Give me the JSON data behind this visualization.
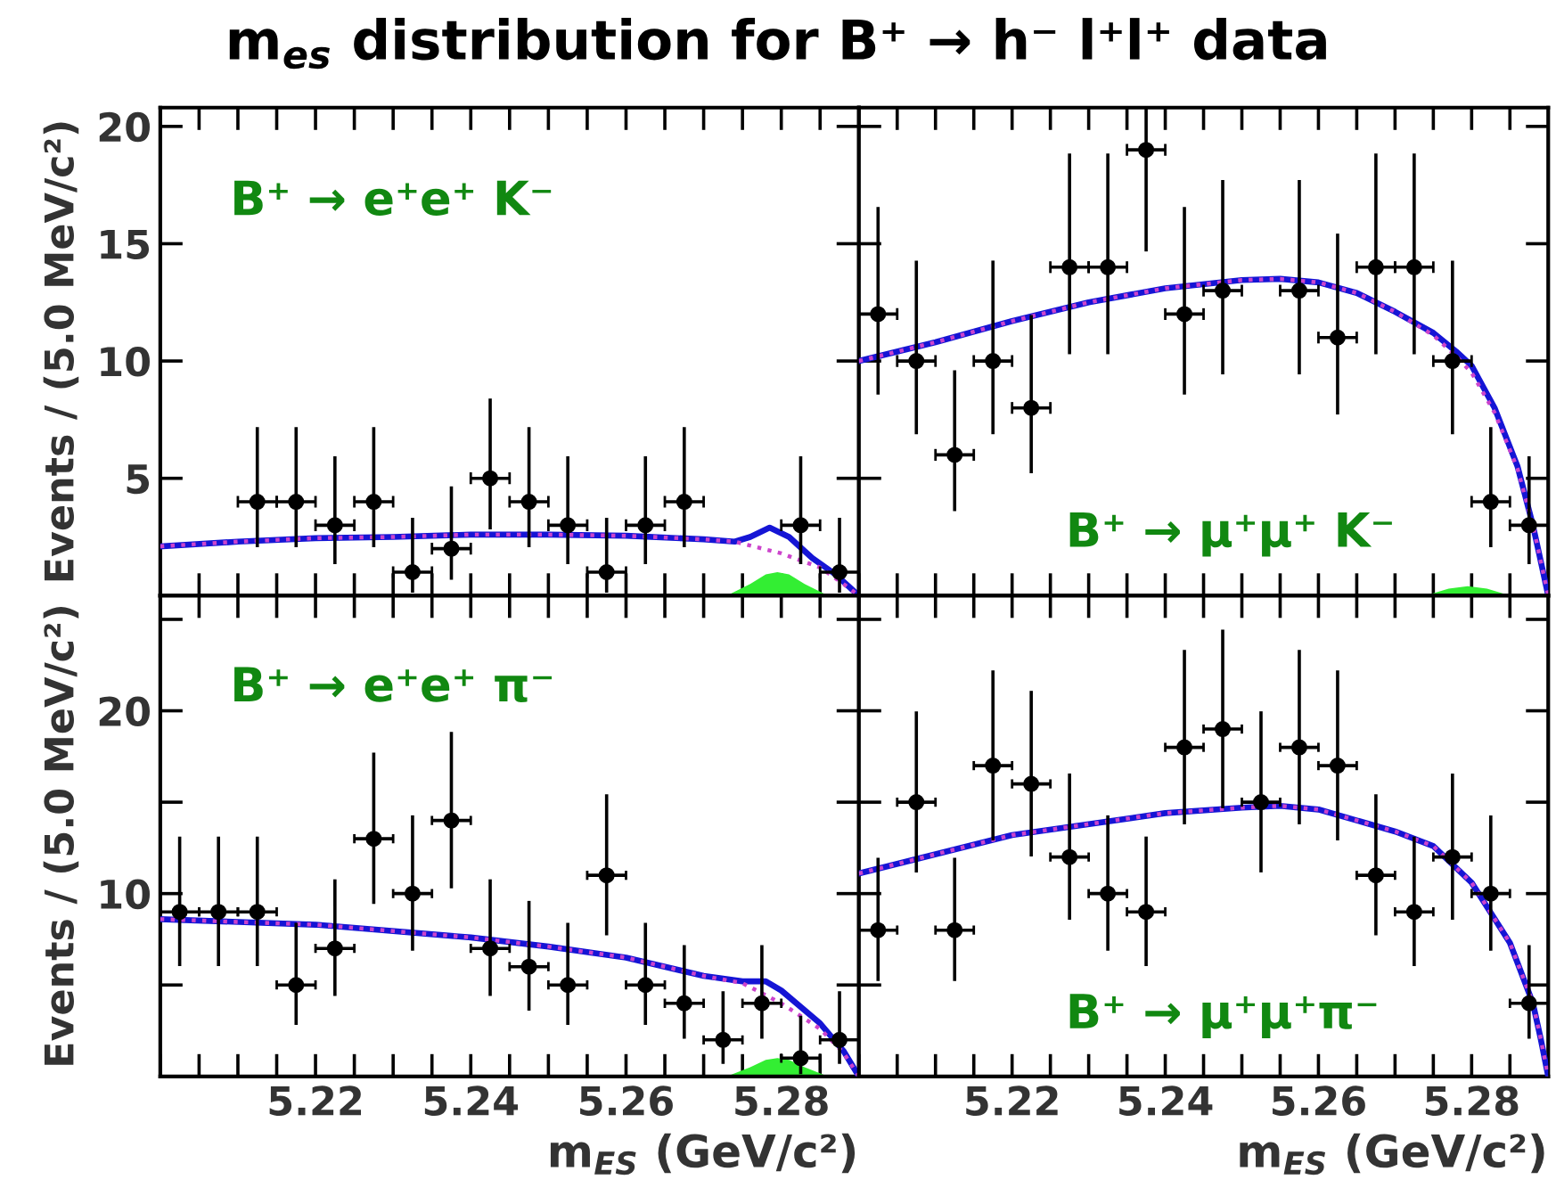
{
  "chart_data": [
    {
      "type": "scatter",
      "title": "m$_{es}$ distribution for B⁺ → h⁻ l⁺l⁺ data",
      "ylabel": "Events / (5.0 MeV/c²)",
      "annotations": [
        "B⁺ → e⁺e⁺ K⁻"
      ],
      "xlim": [
        5.2,
        5.29
      ],
      "ylim": [
        0,
        20.8
      ],
      "tick_labels": "y",
      "legend": false,
      "grid": false,
      "xticks": [
        {
          "value": 5.2,
          "label": null
        },
        {
          "value": 5.205,
          "label": null
        },
        {
          "value": 5.21,
          "label": null
        },
        {
          "value": 5.215,
          "label": null
        },
        {
          "value": 5.22,
          "label": null
        },
        {
          "value": 5.225,
          "label": null
        },
        {
          "value": 5.23,
          "label": null
        },
        {
          "value": 5.235,
          "label": null
        },
        {
          "value": 5.24,
          "label": null
        },
        {
          "value": 5.245,
          "label": null
        },
        {
          "value": 5.25,
          "label": null
        },
        {
          "value": 5.255,
          "label": null
        },
        {
          "value": 5.26,
          "label": null
        },
        {
          "value": 5.265,
          "label": null
        },
        {
          "value": 5.27,
          "label": null
        },
        {
          "value": 5.275,
          "label": null
        },
        {
          "value": 5.28,
          "label": null
        },
        {
          "value": 5.285,
          "label": null
        }
      ],
      "yticks": [
        5,
        10,
        15,
        20
      ],
      "series": [
        {
          "type": "area",
          "color": "#33ee33",
          "x": [
            5.273,
            5.276,
            5.278,
            5.2795,
            5.281,
            5.283,
            5.286
          ],
          "values": [
            0,
            0.5,
            0.9,
            1.0,
            0.9,
            0.5,
            0
          ]
        },
        {
          "type": "line",
          "color": "#cc44cc",
          "line_style": "dotted",
          "x": [
            5.2,
            5.21,
            5.22,
            5.23,
            5.24,
            5.25,
            5.26,
            5.27,
            5.274,
            5.28,
            5.285,
            5.288,
            5.29
          ],
          "values": [
            2.1,
            2.3,
            2.45,
            2.5,
            2.6,
            2.6,
            2.55,
            2.4,
            2.3,
            1.8,
            1.2,
            0.5,
            0
          ]
        },
        {
          "type": "line",
          "color": "#1515d5",
          "line_style": "solid",
          "x": [
            5.2,
            5.21,
            5.22,
            5.23,
            5.24,
            5.25,
            5.26,
            5.27,
            5.274,
            5.276,
            5.2785,
            5.281,
            5.284,
            5.287,
            5.289,
            5.29
          ],
          "values": [
            2.1,
            2.3,
            2.45,
            2.5,
            2.6,
            2.6,
            2.55,
            2.4,
            2.3,
            2.5,
            2.9,
            2.5,
            1.6,
            0.9,
            0.3,
            0
          ]
        },
        {
          "color": "#000000",
          "marker": "circle",
          "x": [
            5.2125,
            5.2175,
            5.2225,
            5.2275,
            5.2325,
            5.2375,
            5.2425,
            5.2475,
            5.2525,
            5.2575,
            5.2625,
            5.2675,
            5.2825,
            5.2875
          ],
          "values": [
            4,
            4,
            3,
            4,
            1,
            2,
            5,
            4,
            3,
            1,
            3,
            4,
            3,
            1
          ],
          "errors": [
            [
              2.06,
              7.18
            ],
            [
              2.06,
              7.18
            ],
            [
              1.34,
              5.94
            ],
            [
              2.06,
              7.18
            ],
            [
              0.13,
              3.32
            ],
            [
              0.68,
              4.66
            ],
            [
              2.82,
              8.4
            ],
            [
              2.06,
              7.18
            ],
            [
              1.34,
              5.94
            ],
            [
              0.13,
              3.32
            ],
            [
              1.34,
              5.94
            ],
            [
              2.06,
              7.18
            ],
            [
              1.34,
              5.94
            ],
            [
              0.13,
              3.32
            ]
          ],
          "xerrors": [
            0.0025,
            0.0025,
            0.0025,
            0.0025,
            0.0025,
            0.0025,
            0.0025,
            0.0025,
            0.0025,
            0.0025,
            0.0025,
            0.0025,
            0.0025,
            0.0025
          ]
        }
      ]
    },
    {
      "type": "scatter",
      "annotations": [
        "B⁺ → μ⁺μ⁺ K⁻"
      ],
      "xlim": [
        5.2,
        5.29
      ],
      "ylim": [
        0,
        20.8
      ],
      "tick_labels": false,
      "legend": false,
      "grid": false,
      "xticks": [
        {
          "value": 5.2,
          "label": null
        },
        {
          "value": 5.205,
          "label": null
        },
        {
          "value": 5.21,
          "label": null
        },
        {
          "value": 5.215,
          "label": null
        },
        {
          "value": 5.22,
          "label": null
        },
        {
          "value": 5.225,
          "label": null
        },
        {
          "value": 5.23,
          "label": null
        },
        {
          "value": 5.235,
          "label": null
        },
        {
          "value": 5.24,
          "label": null
        },
        {
          "value": 5.245,
          "label": null
        },
        {
          "value": 5.25,
          "label": null
        },
        {
          "value": 5.255,
          "label": null
        },
        {
          "value": 5.26,
          "label": null
        },
        {
          "value": 5.265,
          "label": null
        },
        {
          "value": 5.27,
          "label": null
        },
        {
          "value": 5.275,
          "label": null
        },
        {
          "value": 5.28,
          "label": null
        },
        {
          "value": 5.285,
          "label": null
        }
      ],
      "yticks": [
        {
          "value": 5,
          "label": null
        },
        {
          "value": 10,
          "label": null
        },
        {
          "value": 15,
          "label": null
        },
        {
          "value": 20,
          "label": null
        }
      ],
      "series": [
        {
          "type": "area",
          "color": "#33ee33",
          "x": [
            5.274,
            5.277,
            5.2795,
            5.282,
            5.285
          ],
          "values": [
            0,
            0.3,
            0.4,
            0.3,
            0
          ]
        },
        {
          "type": "line",
          "color": "#cc44cc",
          "line_style": "dotted",
          "x": [
            5.2,
            5.21,
            5.22,
            5.23,
            5.24,
            5.25,
            5.255,
            5.26,
            5.265,
            5.27,
            5.275,
            5.278,
            5.28,
            5.283,
            5.286,
            5.288,
            5.289,
            5.29
          ],
          "values": [
            10,
            10.8,
            11.7,
            12.5,
            13.1,
            13.45,
            13.5,
            13.35,
            12.9,
            12.1,
            11.1,
            10.2,
            9.5,
            7.8,
            5.4,
            3,
            1.5,
            0
          ]
        },
        {
          "type": "line",
          "color": "#1515d5",
          "line_style": "solid",
          "x": [
            5.2,
            5.21,
            5.22,
            5.23,
            5.24,
            5.25,
            5.255,
            5.26,
            5.265,
            5.27,
            5.275,
            5.278,
            5.28,
            5.283,
            5.286,
            5.288,
            5.289,
            5.29
          ],
          "values": [
            10,
            10.8,
            11.7,
            12.5,
            13.1,
            13.45,
            13.5,
            13.35,
            12.9,
            12.1,
            11.2,
            10.4,
            9.8,
            8,
            5.5,
            3,
            1.5,
            0
          ]
        },
        {
          "color": "#000000",
          "marker": "circle",
          "x": [
            5.2025,
            5.2075,
            5.2125,
            5.2175,
            5.2225,
            5.2275,
            5.2325,
            5.2375,
            5.2425,
            5.2475,
            5.2575,
            5.2625,
            5.2675,
            5.2725,
            5.2775,
            5.2825,
            5.2875
          ],
          "values": [
            12,
            10,
            6,
            10,
            8,
            14,
            14,
            19,
            12,
            13,
            13,
            11,
            14,
            14,
            10,
            4,
            3
          ],
          "errors": [
            [
              8.57,
              16.57
            ],
            [
              6.88,
              14.28
            ],
            [
              3.6,
              9.6
            ],
            [
              6.88,
              14.28
            ],
            [
              5.22,
              11.96
            ],
            [
              10.29,
              18.84
            ],
            [
              10.29,
              18.84
            ],
            [
              14.67,
              20.8
            ],
            [
              8.57,
              16.57
            ],
            [
              9.43,
              17.71
            ],
            [
              9.43,
              17.71
            ],
            [
              7.72,
              15.43
            ],
            [
              10.29,
              18.84
            ],
            [
              10.29,
              18.84
            ],
            [
              6.88,
              14.28
            ],
            [
              2.06,
              7.18
            ],
            [
              1.34,
              5.94
            ]
          ],
          "xerrors": [
            0.0025,
            0.0025,
            0.0025,
            0.0025,
            0.0025,
            0.0025,
            0.0025,
            0.0025,
            0.0025,
            0.0025,
            0.0025,
            0.0025,
            0.0025,
            0.0025,
            0.0025,
            0.0025,
            0.0025
          ]
        }
      ]
    },
    {
      "type": "scatter",
      "ylabel": "Events / (5.0 MeV/c²)",
      "xlabel": "m$_{ES}$ (GeV/c²)",
      "annotations": [
        "B⁺ → e⁺e⁺ π⁻"
      ],
      "xlim": [
        5.2,
        5.29
      ],
      "ylim": [
        0,
        26.3
      ],
      "legend": false,
      "grid": false,
      "xticks": [
        {
          "value": 5.2,
          "label": null
        },
        {
          "value": 5.205,
          "label": null
        },
        {
          "value": 5.21,
          "label": null
        },
        {
          "value": 5.215,
          "label": null
        },
        {
          "value": 5.22,
          "label": "5.22"
        },
        {
          "value": 5.225,
          "label": null
        },
        {
          "value": 5.23,
          "label": null
        },
        {
          "value": 5.235,
          "label": null
        },
        {
          "value": 5.24,
          "label": "5.24"
        },
        {
          "value": 5.245,
          "label": null
        },
        {
          "value": 5.25,
          "label": null
        },
        {
          "value": 5.255,
          "label": null
        },
        {
          "value": 5.26,
          "label": "5.26"
        },
        {
          "value": 5.265,
          "label": null
        },
        {
          "value": 5.27,
          "label": null
        },
        {
          "value": 5.275,
          "label": null
        },
        {
          "value": 5.28,
          "label": "5.28"
        },
        {
          "value": 5.285,
          "label": null
        }
      ],
      "yticks": [
        {
          "value": 5,
          "label": null
        },
        10,
        {
          "value": 15,
          "label": null
        },
        20,
        {
          "value": 25,
          "label": null
        }
      ],
      "series": [
        {
          "type": "area",
          "color": "#33ee33",
          "x": [
            5.273,
            5.276,
            5.278,
            5.2795,
            5.281,
            5.283,
            5.286
          ],
          "values": [
            0,
            0.5,
            0.9,
            1.0,
            0.9,
            0.5,
            0
          ]
        },
        {
          "type": "line",
          "color": "#cc44cc",
          "line_style": "dotted",
          "x": [
            5.2,
            5.22,
            5.24,
            5.25,
            5.26,
            5.27,
            5.275,
            5.28,
            5.285,
            5.288,
            5.29
          ],
          "values": [
            8.6,
            8.3,
            7.6,
            7.1,
            6.5,
            5.5,
            5.1,
            4.0,
            2.6,
            1.3,
            0
          ]
        },
        {
          "type": "line",
          "color": "#1515d5",
          "line_style": "solid",
          "x": [
            5.2,
            5.22,
            5.24,
            5.25,
            5.26,
            5.27,
            5.275,
            5.278,
            5.28,
            5.285,
            5.288,
            5.29
          ],
          "values": [
            8.6,
            8.3,
            7.6,
            7.1,
            6.5,
            5.5,
            5.2,
            5.2,
            4.7,
            2.9,
            1.4,
            0
          ]
        },
        {
          "color": "#000000",
          "marker": "circle",
          "x": [
            5.2025,
            5.2075,
            5.2125,
            5.2175,
            5.2225,
            5.2275,
            5.2325,
            5.2375,
            5.2425,
            5.2475,
            5.2525,
            5.2575,
            5.2625,
            5.2675,
            5.2725,
            5.2775,
            5.2825,
            5.2875
          ],
          "values": [
            9,
            9,
            9,
            5,
            7,
            13,
            10,
            14,
            7,
            6,
            5,
            11,
            5,
            4,
            2,
            4,
            1,
            2
          ],
          "errors": [
            [
              6.04,
              13.12
            ],
            [
              6.04,
              13.12
            ],
            [
              6.04,
              13.12
            ],
            [
              2.82,
              8.4
            ],
            [
              4.4,
              10.78
            ],
            [
              9.43,
              17.71
            ],
            [
              6.88,
              14.28
            ],
            [
              10.29,
              18.84
            ],
            [
              4.4,
              10.78
            ],
            [
              3.6,
              9.6
            ],
            [
              2.82,
              8.4
            ],
            [
              7.72,
              15.43
            ],
            [
              2.82,
              8.4
            ],
            [
              2.06,
              7.18
            ],
            [
              0.68,
              4.66
            ],
            [
              2.06,
              7.18
            ],
            [
              0.13,
              3.32
            ],
            [
              0.68,
              4.66
            ]
          ],
          "xerrors": [
            0.0025,
            0.0025,
            0.0025,
            0.0025,
            0.0025,
            0.0025,
            0.0025,
            0.0025,
            0.0025,
            0.0025,
            0.0025,
            0.0025,
            0.0025,
            0.0025,
            0.0025,
            0.0025,
            0.0025,
            0.0025
          ]
        }
      ]
    },
    {
      "type": "scatter",
      "xlabel": "m$_{ES}$ (GeV/c²)",
      "annotations": [
        "B⁺ → μ⁺μ⁺π⁻"
      ],
      "xlim": [
        5.2,
        5.29
      ],
      "ylim": [
        0,
        26.3
      ],
      "tick_labels": "x",
      "legend": false,
      "grid": false,
      "xticks": [
        {
          "value": 5.2,
          "label": null
        },
        {
          "value": 5.205,
          "label": null
        },
        {
          "value": 5.21,
          "label": null
        },
        {
          "value": 5.215,
          "label": null
        },
        {
          "value": 5.22,
          "label": "5.22"
        },
        {
          "value": 5.225,
          "label": null
        },
        {
          "value": 5.23,
          "label": null
        },
        {
          "value": 5.235,
          "label": null
        },
        {
          "value": 5.24,
          "label": "5.24"
        },
        {
          "value": 5.245,
          "label": null
        },
        {
          "value": 5.25,
          "label": null
        },
        {
          "value": 5.255,
          "label": null
        },
        {
          "value": 5.26,
          "label": "5.26"
        },
        {
          "value": 5.265,
          "label": null
        },
        {
          "value": 5.27,
          "label": null
        },
        {
          "value": 5.275,
          "label": null
        },
        {
          "value": 5.28,
          "label": "5.28"
        },
        {
          "value": 5.285,
          "label": null
        }
      ],
      "yticks": [
        {
          "value": 5,
          "label": null
        },
        10,
        {
          "value": 15,
          "label": null
        },
        20,
        {
          "value": 25,
          "label": null
        }
      ],
      "series": [
        {
          "type": "line",
          "color": "#cc44cc",
          "line_style": "dotted",
          "x": [
            5.2,
            5.22,
            5.24,
            5.25,
            5.255,
            5.26,
            5.27,
            5.275,
            5.28,
            5.285,
            5.288,
            5.289,
            5.29
          ],
          "values": [
            11.1,
            13.2,
            14.4,
            14.7,
            14.8,
            14.6,
            13.4,
            12.6,
            10.6,
            7.3,
            4.0,
            2.1,
            0
          ]
        },
        {
          "type": "line",
          "color": "#1515d5",
          "line_style": "solid",
          "x": [
            5.2,
            5.22,
            5.24,
            5.25,
            5.255,
            5.26,
            5.27,
            5.275,
            5.28,
            5.285,
            5.288,
            5.289,
            5.29
          ],
          "values": [
            11.1,
            13.2,
            14.4,
            14.7,
            14.8,
            14.6,
            13.4,
            12.6,
            10.6,
            7.3,
            4.0,
            2.1,
            0
          ]
        },
        {
          "color": "#000000",
          "marker": "circle",
          "x": [
            5.2025,
            5.2075,
            5.2125,
            5.2175,
            5.2225,
            5.2275,
            5.2325,
            5.2375,
            5.2425,
            5.2475,
            5.2525,
            5.2575,
            5.2625,
            5.2675,
            5.2725,
            5.2775,
            5.2825,
            5.2875
          ],
          "values": [
            8,
            15,
            8,
            17,
            16,
            12,
            10,
            9,
            18,
            19,
            15,
            18,
            17,
            11,
            9,
            12,
            10,
            4
          ],
          "errors": [
            [
              5.22,
              11.96
            ],
            [
              11.16,
              19.97
            ],
            [
              5.22,
              11.96
            ],
            [
              12.91,
              22.21
            ],
            [
              12.03,
              21.09
            ],
            [
              8.57,
              16.57
            ],
            [
              6.88,
              14.28
            ],
            [
              6.04,
              13.12
            ],
            [
              13.79,
              23.33
            ],
            [
              14.67,
              24.44
            ],
            [
              11.16,
              19.97
            ],
            [
              13.79,
              23.33
            ],
            [
              12.91,
              22.21
            ],
            [
              7.72,
              15.43
            ],
            [
              6.04,
              13.12
            ],
            [
              8.57,
              16.57
            ],
            [
              6.88,
              14.28
            ],
            [
              2.06,
              7.18
            ]
          ],
          "xerrors": [
            0.0025,
            0.0025,
            0.0025,
            0.0025,
            0.0025,
            0.0025,
            0.0025,
            0.0025,
            0.0025,
            0.0025,
            0.0025,
            0.0025,
            0.0025,
            0.0025,
            0.0025,
            0.0025,
            0.0025,
            0.0025
          ]
        }
      ]
    }
  ]
}
